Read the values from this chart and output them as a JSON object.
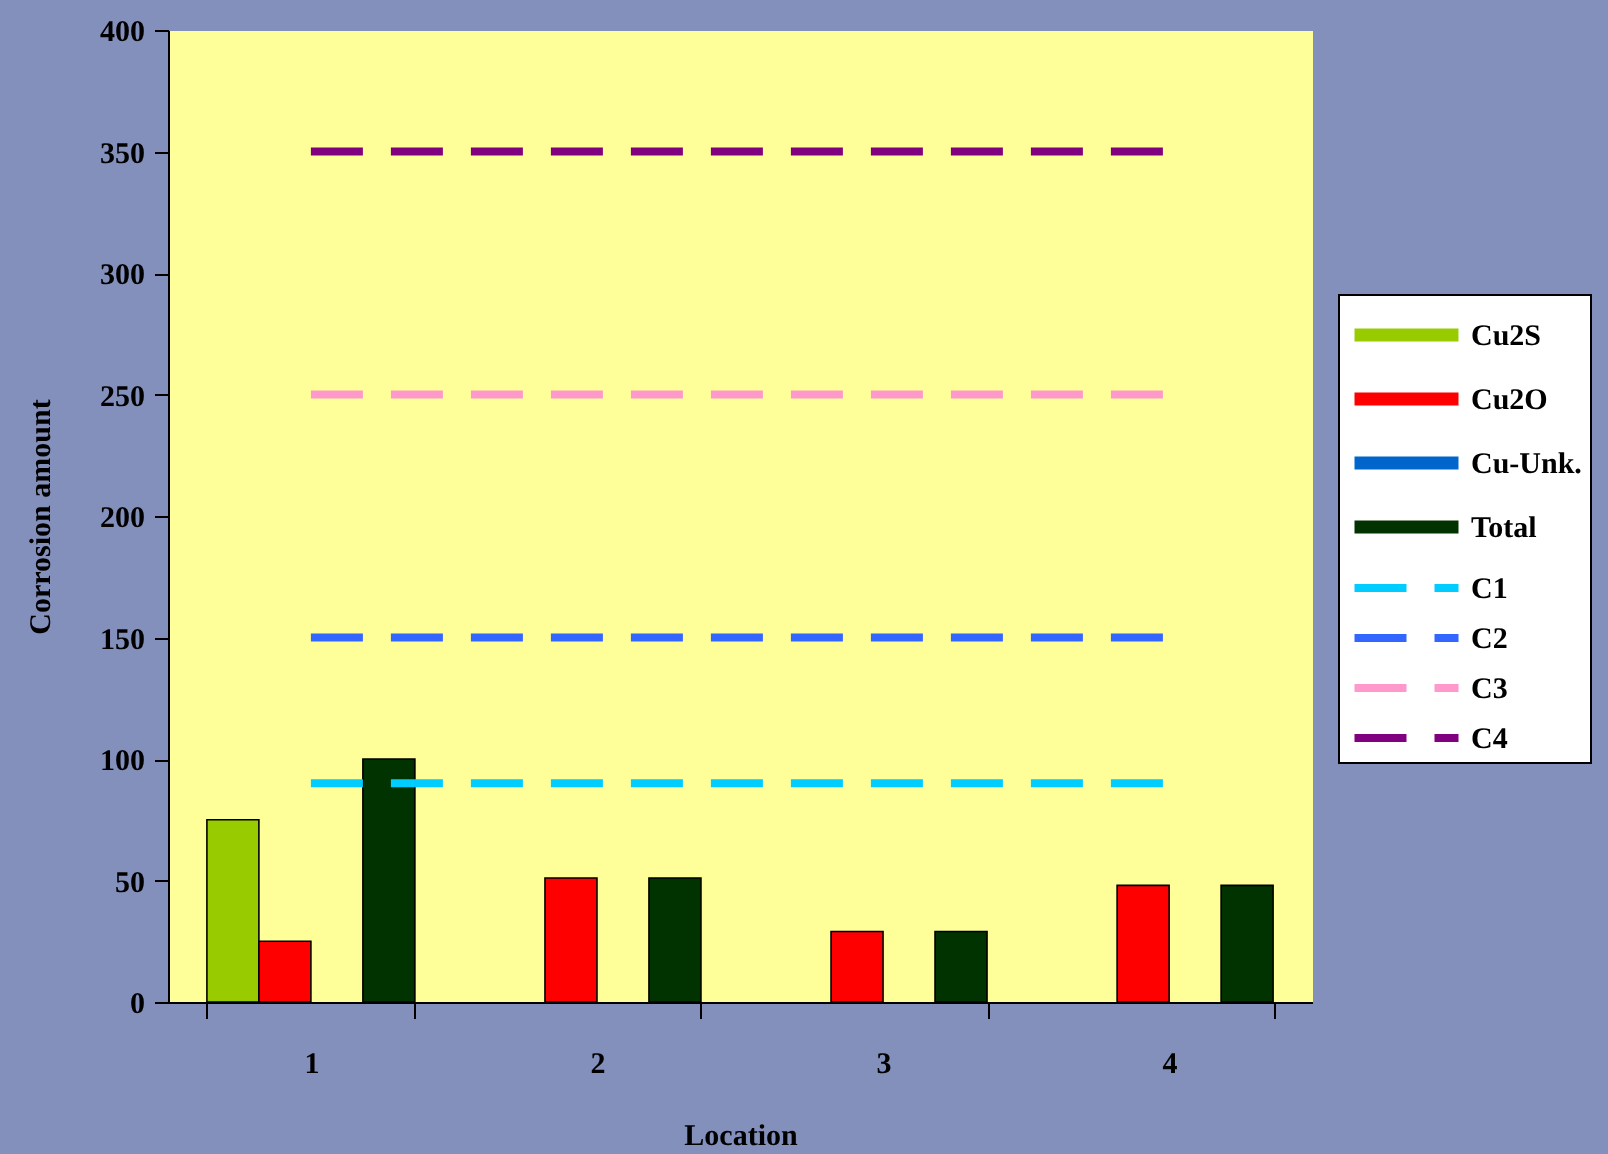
{
  "chart_data": {
    "type": "bar",
    "xlabel": "Location",
    "ylabel": "Corrosion amount",
    "categories": [
      "1",
      "2",
      "3",
      "4"
    ],
    "series": [
      {
        "name": "Cu2S",
        "color": "#99cc00",
        "values": [
          75,
          null,
          null,
          null
        ]
      },
      {
        "name": "Cu2O",
        "color": "#ff0000",
        "values": [
          25,
          51,
          29,
          48
        ]
      },
      {
        "name": "Cu-Unk.",
        "color": "#0066cc",
        "values": [
          null,
          null,
          null,
          null
        ]
      },
      {
        "name": "Total",
        "color": "#003300",
        "values": [
          100,
          51,
          29,
          48
        ]
      },
      {
        "name": "C1",
        "type": "line",
        "color": "#00ccff",
        "values": [
          90,
          90,
          90,
          90
        ]
      },
      {
        "name": "C2",
        "type": "line",
        "color": "#3366ff",
        "values": [
          150,
          150,
          150,
          150
        ]
      },
      {
        "name": "C3",
        "type": "line",
        "color": "#ff99cc",
        "values": [
          250,
          250,
          250,
          250
        ]
      },
      {
        "name": "C4",
        "type": "line",
        "color": "#800080",
        "values": [
          350,
          350,
          350,
          350
        ]
      }
    ],
    "ylim": [
      0,
      400
    ],
    "yticks": [
      0,
      50,
      100,
      150,
      200,
      250,
      300,
      350,
      400
    ],
    "grid": false,
    "legend": "right",
    "line_style": "dashed"
  }
}
